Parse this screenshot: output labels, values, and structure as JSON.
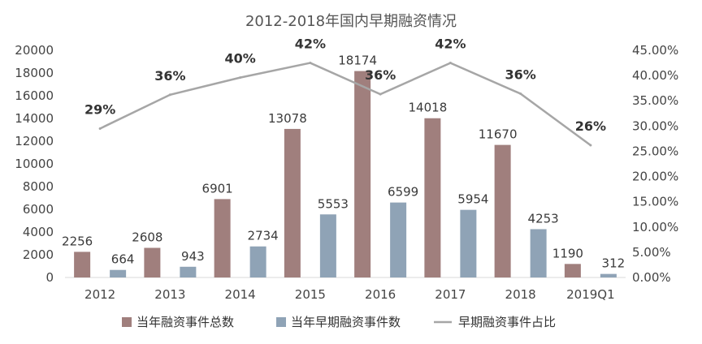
{
  "chart_data": {
    "type": "bar",
    "title": "2012-2018年国内早期融资情况",
    "categories": [
      "2012",
      "2013",
      "2014",
      "2015",
      "2016",
      "2017",
      "2018",
      "2019Q1"
    ],
    "series": [
      {
        "name": "当年融资事件总数",
        "kind": "bar",
        "axis": "left",
        "color": "#a07f7d",
        "values": [
          2256,
          2608,
          6901,
          13078,
          18174,
          14018,
          11670,
          1190
        ]
      },
      {
        "name": "当年早期融资事件数",
        "kind": "bar",
        "axis": "left",
        "color": "#8fa3b6",
        "values": [
          664,
          943,
          2734,
          5553,
          6599,
          5954,
          4253,
          312
        ]
      },
      {
        "name": "早期融资事件占比",
        "kind": "line",
        "axis": "right",
        "color": "#a6a6a6",
        "values": [
          29.5,
          36.2,
          39.6,
          42.5,
          36.3,
          42.5,
          36.4,
          26.2
        ],
        "labels": [
          "29%",
          "36%",
          "40%",
          "42%",
          "36%",
          "42%",
          "36%",
          "26%"
        ]
      }
    ],
    "y_left": {
      "ylim": [
        0,
        20000
      ],
      "ticks": [
        "0",
        "2000",
        "4000",
        "6000",
        "8000",
        "10000",
        "12000",
        "14000",
        "16000",
        "18000",
        "20000"
      ]
    },
    "y_right": {
      "ylim": [
        0,
        45
      ],
      "ticks": [
        "0.00%",
        "5.00%",
        "10.00%",
        "15.00%",
        "20.00%",
        "25.00%",
        "30.00%",
        "35.00%",
        "40.00%",
        "45.00%"
      ]
    },
    "grid": false,
    "legend_position": "bottom"
  }
}
